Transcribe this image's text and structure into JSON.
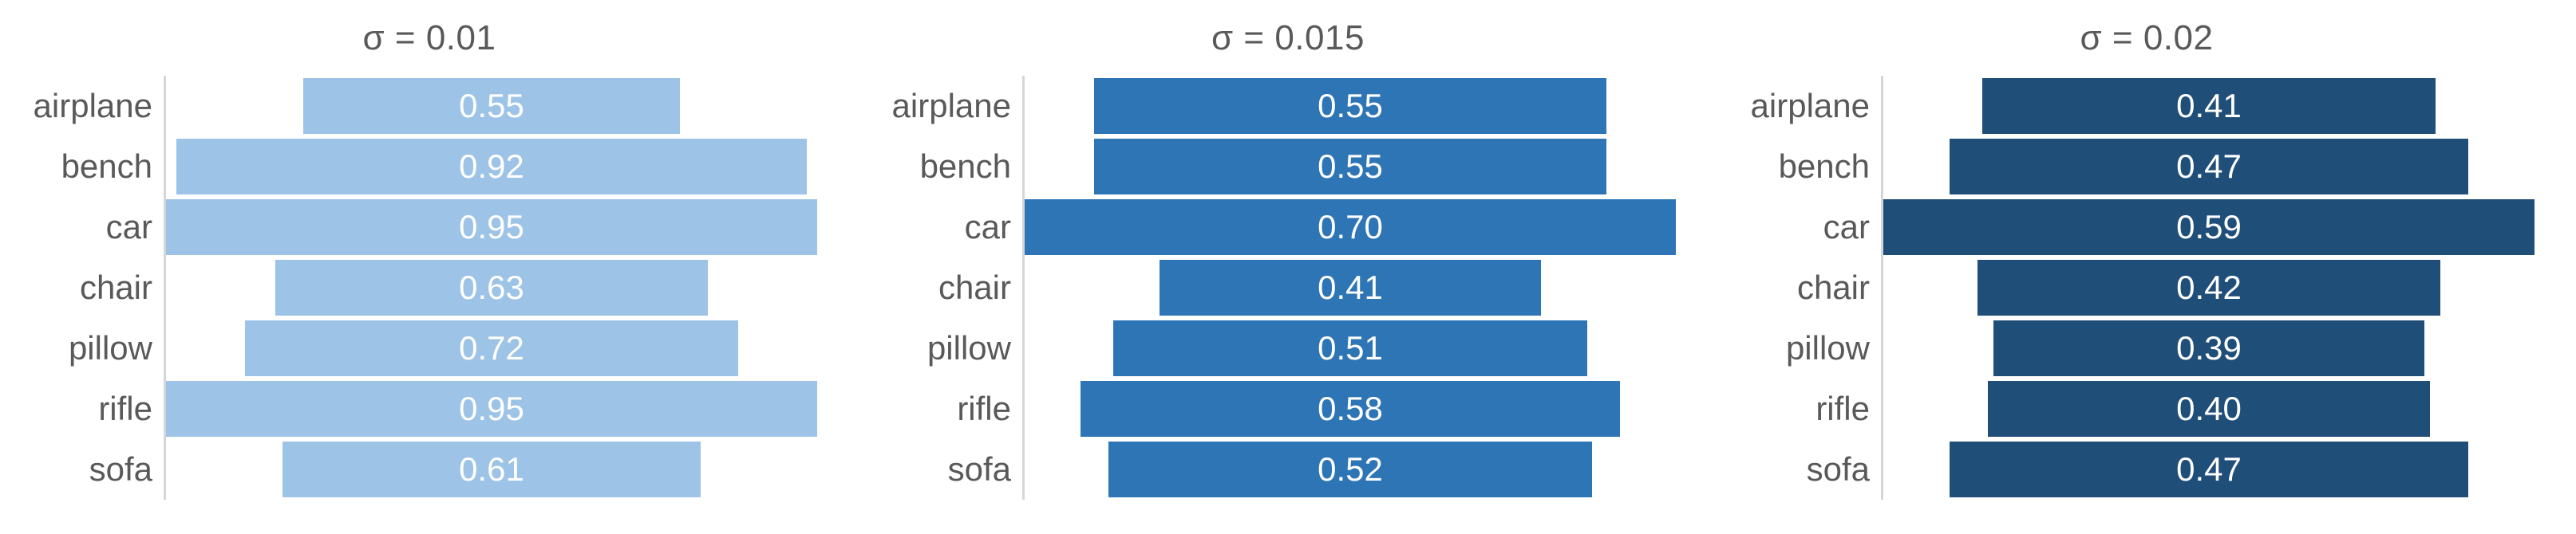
{
  "styles": {
    "background": "#FFFFFF",
    "title_color": "#595959",
    "category_label_color": "#595959",
    "value_label_color": "#FFFFFF",
    "axis_line_color": "#D6D6D6"
  },
  "chart_data": [
    {
      "type": "bar",
      "variant": "centered-funnel",
      "orientation": "horizontal",
      "title": "σ = 0.01",
      "categories": [
        "airplane",
        "bench",
        "car",
        "chair",
        "pillow",
        "rifle",
        "sofa"
      ],
      "values": [
        0.55,
        0.92,
        0.95,
        0.63,
        0.72,
        0.95,
        0.61
      ],
      "value_labels": [
        "0.55",
        "0.92",
        "0.95",
        "0.63",
        "0.72",
        "0.95",
        "0.61"
      ],
      "bar_color": "#9DC3E6",
      "xlim": [
        0,
        0.95
      ],
      "xlabel": "",
      "ylabel": "",
      "grid": false,
      "legend": "none",
      "value_label_position": "inside-center"
    },
    {
      "type": "bar",
      "variant": "centered-funnel",
      "orientation": "horizontal",
      "title": "σ = 0.015",
      "categories": [
        "airplane",
        "bench",
        "car",
        "chair",
        "pillow",
        "rifle",
        "sofa"
      ],
      "values": [
        0.55,
        0.55,
        0.7,
        0.41,
        0.51,
        0.58,
        0.52
      ],
      "value_labels": [
        "0.55",
        "0.55",
        "0.70",
        "0.41",
        "0.51",
        "0.58",
        "0.52"
      ],
      "bar_color": "#2E75B6",
      "xlim": [
        0,
        0.7
      ],
      "xlabel": "",
      "ylabel": "",
      "grid": false,
      "legend": "none",
      "value_label_position": "inside-center"
    },
    {
      "type": "bar",
      "variant": "centered-funnel",
      "orientation": "horizontal",
      "title": "σ = 0.02",
      "categories": [
        "airplane",
        "bench",
        "car",
        "chair",
        "pillow",
        "rifle",
        "sofa"
      ],
      "values": [
        0.41,
        0.47,
        0.59,
        0.42,
        0.39,
        0.4,
        0.47
      ],
      "value_labels": [
        "0.41",
        "0.47",
        "0.59",
        "0.42",
        "0.39",
        "0.40",
        "0.47"
      ],
      "bar_color": "#1F4E79",
      "xlim": [
        0,
        0.59
      ],
      "xlabel": "",
      "ylabel": "",
      "grid": false,
      "legend": "none",
      "value_label_position": "inside-center"
    }
  ]
}
